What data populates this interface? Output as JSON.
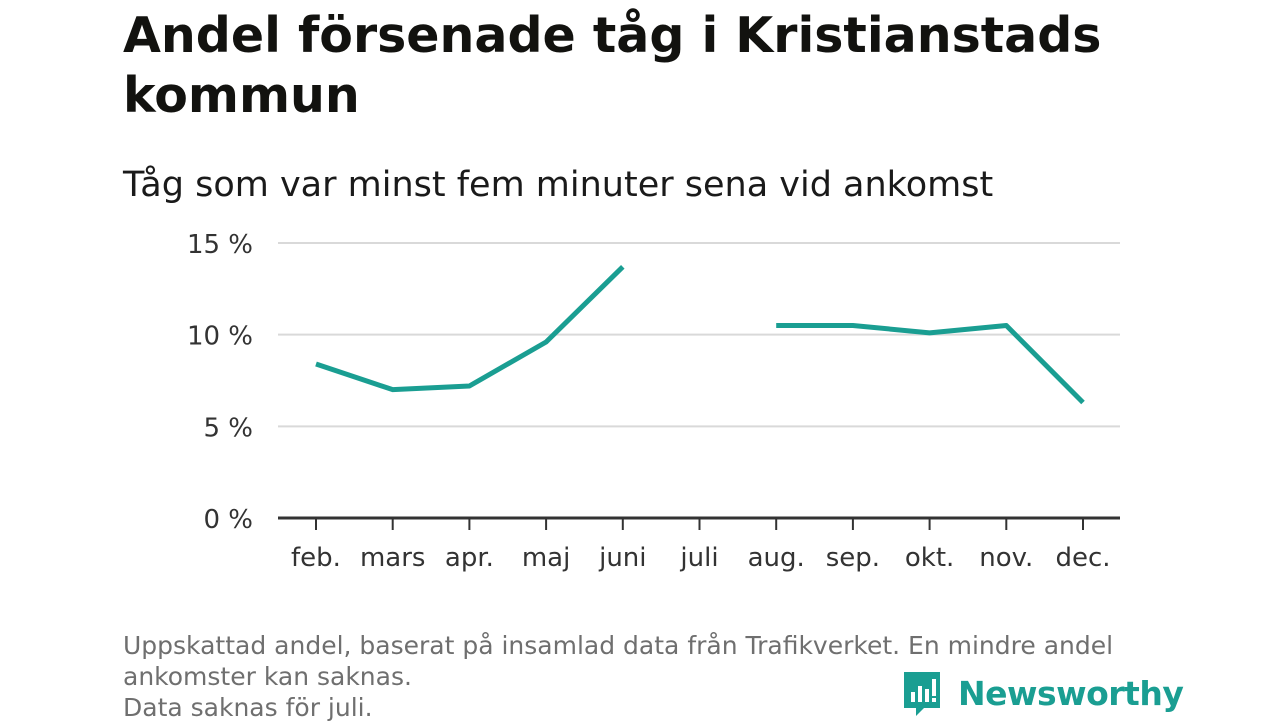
{
  "title": "Andel försenade tåg i Kristianstads kommun",
  "subtitle": "Tåg som var minst fem minuter sena vid ankomst",
  "footnote": {
    "line1": "Uppskattad andel, baserat på insamlad data från Trafikverket. En mindre andel",
    "line2": "ankomster kan saknas.",
    "line3": "Data saknas för juli."
  },
  "brand": {
    "name": "Newsworthy",
    "icon": "newsworthy-logo-icon"
  },
  "colors": {
    "line": "#1a9e92",
    "grid": "#d9d9d9",
    "axis": "#333333",
    "tick_label": "#333333"
  },
  "chart_data": {
    "type": "line",
    "categories": [
      "feb.",
      "mars",
      "apr.",
      "maj",
      "juni",
      "juli",
      "aug.",
      "sep.",
      "okt.",
      "nov.",
      "dec."
    ],
    "series": [
      {
        "values": [
          8.4,
          7.0,
          7.2,
          9.6,
          13.7,
          null,
          10.5,
          10.5,
          10.1,
          10.5,
          6.3
        ]
      }
    ],
    "yticks": [
      0,
      5,
      10,
      15
    ],
    "ytick_labels": [
      "0 %",
      "5 %",
      "10 %",
      "15 %"
    ],
    "ylim": [
      0,
      15
    ],
    "xlabel": "",
    "ylabel": "",
    "grid": true,
    "legend": "none"
  }
}
